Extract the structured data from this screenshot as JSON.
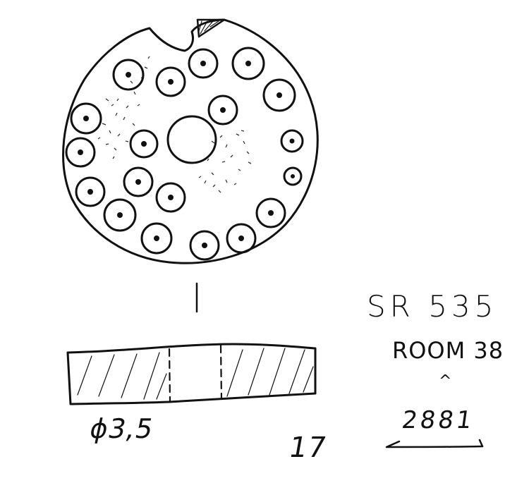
{
  "drawing": {
    "perforation_count": 20,
    "ink_color": "#111111"
  },
  "annotations": {
    "diameter": "ϕ3,5",
    "thickness": "17",
    "site": "SR 535",
    "room": "ROOM 38",
    "caret": "^",
    "object_number": "2881"
  }
}
